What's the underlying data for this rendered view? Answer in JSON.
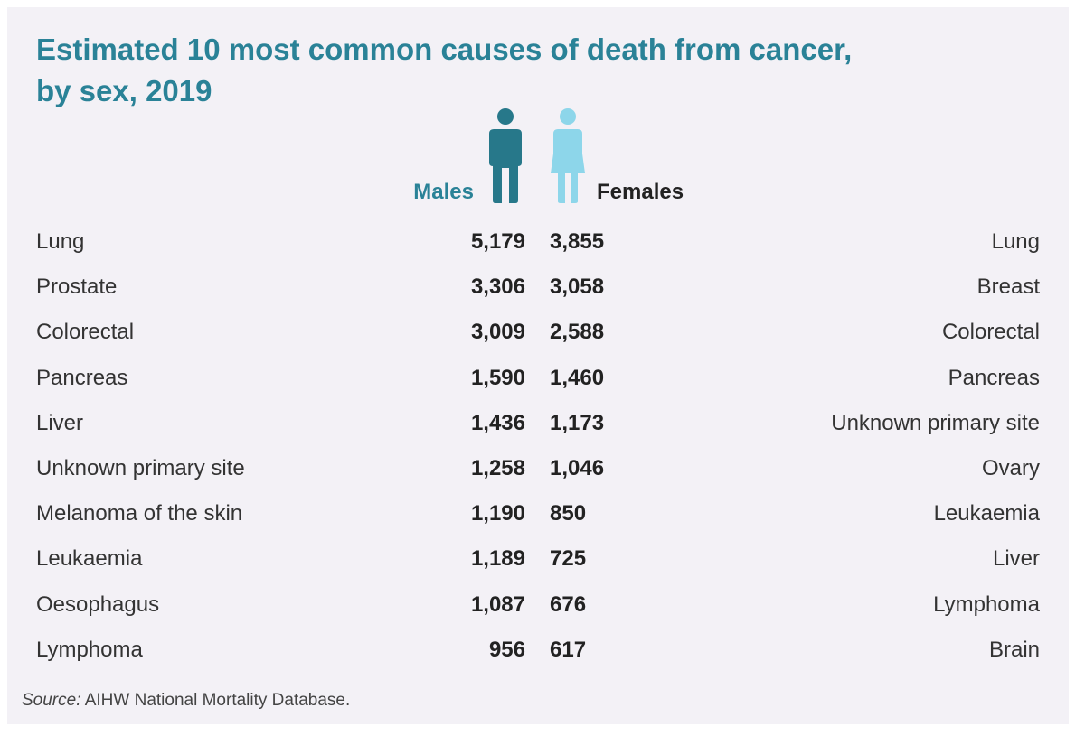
{
  "title_lines": [
    "Estimated 10 most common causes of death from cancer,",
    "by sex, 2019"
  ],
  "colors": {
    "title": "#2a8297",
    "males": "#27788a",
    "females": "#8dd6ea",
    "background": "#f3f1f6"
  },
  "source": {
    "label": "Source:",
    "text": "AIHW National Mortality Database."
  },
  "chart_data": {
    "type": "table",
    "title": "Estimated 10 most common causes of death from cancer, by sex, 2019",
    "columns": [
      "Males",
      "Females"
    ],
    "series": [
      {
        "name": "Males",
        "categories": [
          "Lung",
          "Prostate",
          "Colorectal",
          "Pancreas",
          "Liver",
          "Unknown primary site",
          "Melanoma of the skin",
          "Leukaemia",
          "Oesophagus",
          "Lymphoma"
        ],
        "values": [
          "5,179",
          "3,306",
          "3,009",
          "1,590",
          "1,436",
          "1,258",
          "1,190",
          "1,189",
          "1,087",
          "956"
        ]
      },
      {
        "name": "Females",
        "categories": [
          "Lung",
          "Breast",
          "Colorectal",
          "Pancreas",
          "Unknown primary site",
          "Ovary",
          "Leukaemia",
          "Liver",
          "Lymphoma",
          "Brain"
        ],
        "values": [
          "3,855",
          "3,058",
          "2,588",
          "1,460",
          "1,173",
          "1,046",
          "850",
          "725",
          "676",
          "617"
        ]
      }
    ]
  }
}
